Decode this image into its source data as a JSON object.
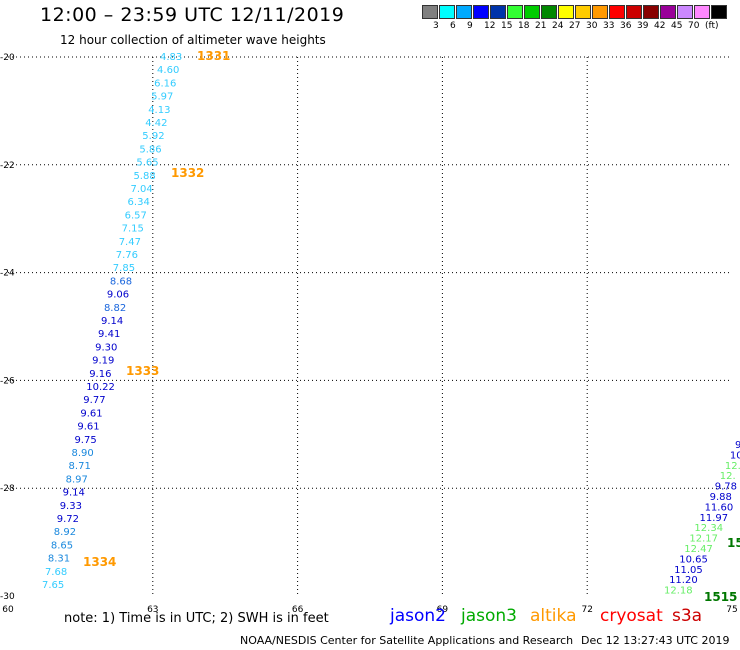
{
  "header": {
    "title": "12:00 – 23:59 UTC 12/11/2019",
    "subtitle": "12 hour collection of altimeter wave heights"
  },
  "legend": {
    "colors": [
      "#808080",
      "#00ffff",
      "#00aaff",
      "#0000ff",
      "#0033aa",
      "#33ff33",
      "#00cc00",
      "#008800",
      "#ffff00",
      "#ffcc00",
      "#ff9900",
      "#ff0000",
      "#cc0000",
      "#880000",
      "#990099",
      "#cc88ff",
      "#ff88ff",
      "#000000"
    ],
    "labels": [
      "3",
      "6",
      "9",
      "12",
      "15",
      "18",
      "21",
      "24",
      "27",
      "30",
      "33",
      "36",
      "39",
      "42",
      "45",
      "70",
      "(ft)"
    ]
  },
  "map": {
    "lon_range": [
      60,
      75
    ],
    "lat_range": [
      -30,
      -20
    ],
    "x_ticks": [
      "60",
      "63",
      "66",
      "69",
      "72",
      "75"
    ],
    "y_ticks": [
      "-20",
      "-22",
      "-24",
      "-26",
      "-28",
      "-30"
    ],
    "grid": true
  },
  "tracks": [
    {
      "satellite": "jason2",
      "values": [
        {
          "text": "4.83",
          "color": "#33ccff"
        },
        {
          "text": "4.60",
          "color": "#33ccff"
        },
        {
          "text": "6.16",
          "color": "#33ccff"
        },
        {
          "text": "5.97",
          "color": "#33ccff"
        },
        {
          "text": "4.13",
          "color": "#33ccff"
        },
        {
          "text": "4.42",
          "color": "#33ccff"
        },
        {
          "text": "5.92",
          "color": "#33ccff"
        },
        {
          "text": "5.86",
          "color": "#33ccff"
        },
        {
          "text": "5.65",
          "color": "#33ccff"
        },
        {
          "text": "5.88",
          "color": "#33ccff"
        },
        {
          "text": "7.04",
          "color": "#33ccff"
        },
        {
          "text": "6.34",
          "color": "#33ccff"
        },
        {
          "text": "6.57",
          "color": "#33ccff"
        },
        {
          "text": "7.15",
          "color": "#33ccff"
        },
        {
          "text": "7.47",
          "color": "#33ccff"
        },
        {
          "text": "7.76",
          "color": "#33ccff"
        },
        {
          "text": "7.85",
          "color": "#33ccff"
        },
        {
          "text": "8.68",
          "color": "#1a66dd"
        },
        {
          "text": "9.06",
          "color": "#0000cc"
        },
        {
          "text": "8.82",
          "color": "#1a66dd"
        },
        {
          "text": "9.14",
          "color": "#0000cc"
        },
        {
          "text": "9.41",
          "color": "#0000cc"
        },
        {
          "text": "9.30",
          "color": "#0000cc"
        },
        {
          "text": "9.19",
          "color": "#0000cc"
        },
        {
          "text": "9.16",
          "color": "#0000cc"
        },
        {
          "text": "10.22",
          "color": "#0000cc"
        },
        {
          "text": "9.77",
          "color": "#0000cc"
        },
        {
          "text": "9.61",
          "color": "#0000cc"
        },
        {
          "text": "9.61",
          "color": "#0000cc"
        },
        {
          "text": "9.75",
          "color": "#0000cc"
        },
        {
          "text": "8.90",
          "color": "#1a88dd"
        },
        {
          "text": "8.71",
          "color": "#1a88dd"
        },
        {
          "text": "8.97",
          "color": "#1a88dd"
        },
        {
          "text": "9.14",
          "color": "#0000cc"
        },
        {
          "text": "9.33",
          "color": "#0000cc"
        },
        {
          "text": "9.72",
          "color": "#0000cc"
        },
        {
          "text": "8.92",
          "color": "#1a88dd"
        },
        {
          "text": "8.65",
          "color": "#1a88dd"
        },
        {
          "text": "8.31",
          "color": "#1a88dd"
        },
        {
          "text": "7.68",
          "color": "#33ccff"
        },
        {
          "text": "7.65",
          "color": "#33ccff"
        }
      ],
      "time_labels": [
        {
          "text": "1331",
          "color": "#ff9900"
        },
        {
          "text": "1332",
          "color": "#ff9900"
        },
        {
          "text": "1333",
          "color": "#ff9900"
        },
        {
          "text": "1334",
          "color": "#ff9900"
        }
      ]
    },
    {
      "satellite": "jason3",
      "values": [
        {
          "text": "9",
          "color": "#0000cc"
        },
        {
          "text": "10.",
          "color": "#0000cc"
        },
        {
          "text": "12.",
          "color": "#66ee66"
        },
        {
          "text": "12.",
          "color": "#66ee66"
        },
        {
          "text": "9.78",
          "color": "#0000cc"
        },
        {
          "text": "9.88",
          "color": "#0000cc"
        },
        {
          "text": "11.60",
          "color": "#0000cc"
        },
        {
          "text": "11.97",
          "color": "#0000cc"
        },
        {
          "text": "12.34",
          "color": "#66ee66"
        },
        {
          "text": "12.17",
          "color": "#66ee66"
        },
        {
          "text": "12.47",
          "color": "#66ee66"
        },
        {
          "text": "10.65",
          "color": "#0000cc"
        },
        {
          "text": "11.05",
          "color": "#0000cc"
        },
        {
          "text": "11.20",
          "color": "#0000cc"
        },
        {
          "text": "12.18",
          "color": "#66ee66"
        }
      ],
      "time_labels": [
        {
          "text": "15",
          "color": "#007700"
        },
        {
          "text": "1515",
          "color": "#007700"
        }
      ]
    }
  ],
  "footer": {
    "note": "note: 1) Time is in UTC; 2) SWH is in feet",
    "satellites": [
      {
        "name": "jason2",
        "color": "#0000ff"
      },
      {
        "name": "jason3",
        "color": "#00aa00"
      },
      {
        "name": "altika",
        "color": "#ff9900"
      },
      {
        "name": "cryosat",
        "color": "#ff0000"
      },
      {
        "name": "s3a",
        "color": "#cc0000"
      }
    ],
    "credit": "NOAA/NESDIS Center for Satellite Applications and Research",
    "timestamp": "Dec 12 13:27:43 UTC 2019"
  }
}
